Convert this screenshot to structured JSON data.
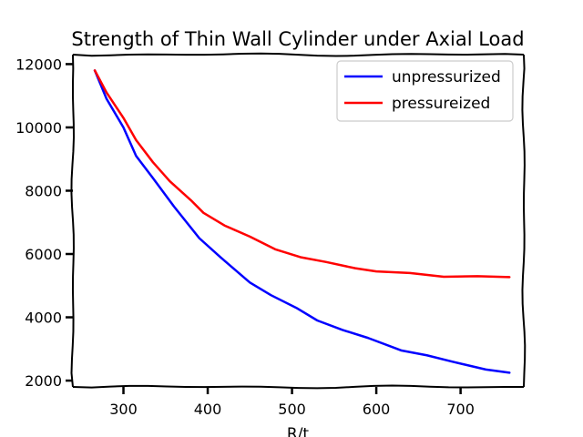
{
  "chart_data": {
    "type": "line",
    "title": "Strength of Thin Wall Cylinder under Axial Load",
    "xlabel": "R/t",
    "ylabel": "",
    "xlim": [
      240,
      775
    ],
    "ylim": [
      1800,
      12300
    ],
    "xticks": [
      300,
      400,
      500,
      600,
      700
    ],
    "yticks": [
      2000,
      4000,
      6000,
      8000,
      10000,
      12000
    ],
    "xtick_labels": [
      "300",
      "400",
      "500",
      "600",
      "700"
    ],
    "ytick_labels": [
      "2000",
      "4000",
      "6000",
      "8000",
      "10000",
      "12000"
    ],
    "grid": false,
    "legend_position": "top-right",
    "series": [
      {
        "name": "unpressurized",
        "color": "#0000ff",
        "x": [
          266,
          280,
          300,
          315,
          335,
          360,
          390,
          415,
          450,
          475,
          505,
          530,
          560,
          590,
          630,
          660,
          690,
          730,
          758
        ],
        "y": [
          11800,
          10900,
          10000,
          9100,
          8400,
          7500,
          6500,
          5900,
          5100,
          4700,
          4300,
          3900,
          3600,
          3350,
          2950,
          2800,
          2600,
          2350,
          2250
        ]
      },
      {
        "name": "pressureized",
        "color": "#ff0000",
        "x": [
          266,
          280,
          300,
          315,
          335,
          355,
          380,
          395,
          420,
          450,
          480,
          510,
          540,
          575,
          600,
          640,
          680,
          720,
          758
        ],
        "y": [
          11800,
          11100,
          10300,
          9600,
          8900,
          8300,
          7700,
          7300,
          6900,
          6550,
          6150,
          5900,
          5750,
          5550,
          5450,
          5400,
          5280,
          5300,
          5270
        ]
      }
    ]
  }
}
